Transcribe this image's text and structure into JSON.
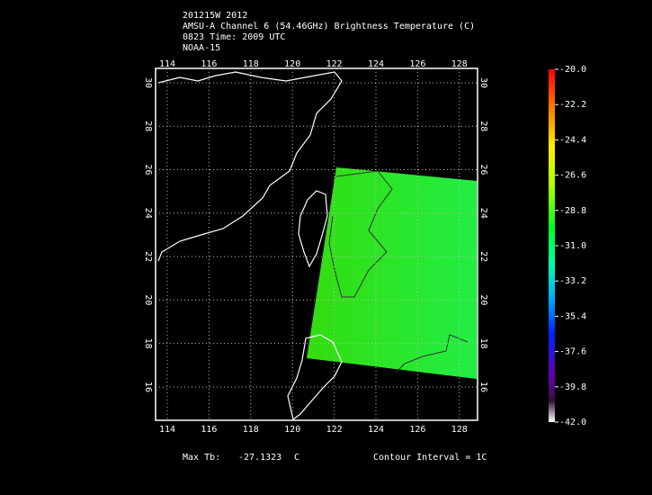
{
  "header": {
    "lines": [
      "201215W 2012",
      "AMSU-A Channel 6 (54.46GHz) Brightness Temperature (C)",
      "0823 Time: 2009 UTC",
      "NOAA-15"
    ]
  },
  "map": {
    "lon_ticks": [
      114,
      116,
      118,
      120,
      122,
      124,
      126,
      128
    ],
    "lat_ticks": [
      16,
      18,
      20,
      22,
      24,
      26,
      28,
      30
    ]
  },
  "colorbar": {
    "ticks": [
      {
        "value": -20,
        "label": "-20.0"
      },
      {
        "value": -22.2,
        "label": "-22.2"
      },
      {
        "value": -24.4,
        "label": "-24.4"
      },
      {
        "value": -26.6,
        "label": "-26.6"
      },
      {
        "value": -28.8,
        "label": "-28.8"
      },
      {
        "value": -31,
        "label": "-31.0"
      },
      {
        "value": -33.2,
        "label": "-33.2"
      },
      {
        "value": -35.4,
        "label": "-35.4"
      },
      {
        "value": -37.6,
        "label": "-37.6"
      },
      {
        "value": -39.8,
        "label": "-39.8"
      },
      {
        "value": -42,
        "label": "-42.0"
      }
    ]
  },
  "footer": {
    "max_label": "Max Tb:",
    "max_value": -27.1323,
    "unit": "C",
    "contour": "Contour Interval = 1C"
  }
}
